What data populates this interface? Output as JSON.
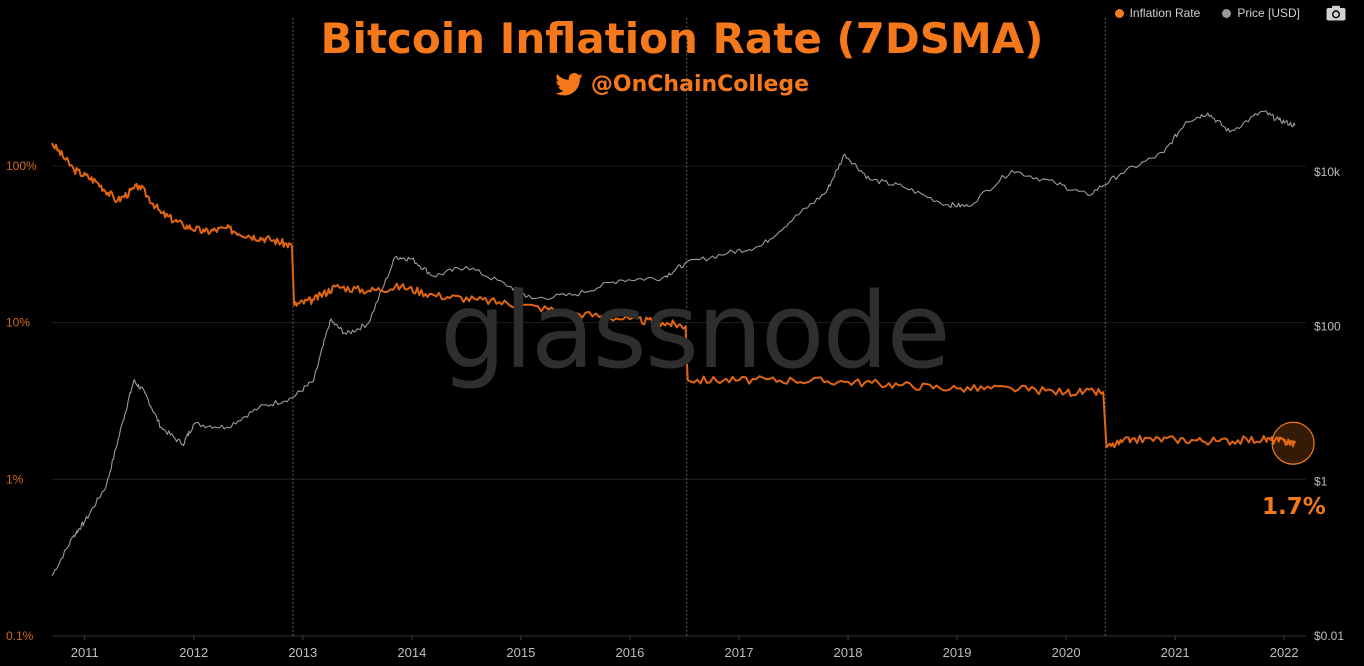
{
  "title": "Bitcoin Inflation Rate (7DSMA)",
  "handle": "@OnChainCollege",
  "watermark": "glassnode",
  "callout": "1.7%",
  "legend": [
    {
      "name": "Inflation Rate",
      "color": "#f07c1a"
    },
    {
      "name": "Price [USD]",
      "color": "#9a9a9a"
    }
  ],
  "colors": {
    "title": "#f5781b",
    "inflation": "#e06512",
    "price": "#9b9b9b",
    "background": "#000000",
    "axis_text_left": "#d46a1a",
    "axis_text_right": "#bdbdbd"
  },
  "icons": {
    "camera": "camera-icon",
    "twitter": "twitter-bird-icon"
  },
  "chart_data": {
    "type": "line",
    "title": "Bitcoin Inflation Rate (7DSMA)",
    "x_range": [
      2010.7,
      2022.2
    ],
    "xticks": [
      "2011",
      "2012",
      "2013",
      "2014",
      "2015",
      "2016",
      "2017",
      "2018",
      "2019",
      "2020",
      "2021",
      "2022"
    ],
    "left_axis": {
      "scale": "log",
      "range_percent": [
        0.1,
        300
      ],
      "ticks": [
        "100%",
        "10%",
        "1%",
        "0.1%"
      ]
    },
    "right_axis": {
      "scale": "log",
      "range_usd": [
        0.01,
        300000
      ],
      "ticks": [
        "$10k",
        "$100",
        "$1",
        "$0.01"
      ]
    },
    "halvings": [
      2012.91,
      2016.52,
      2020.36
    ],
    "series": [
      {
        "name": "Inflation Rate",
        "axis": "left",
        "unit": "percent",
        "points": [
          [
            2010.7,
            140
          ],
          [
            2010.9,
            95
          ],
          [
            2011.1,
            80
          ],
          [
            2011.3,
            60
          ],
          [
            2011.5,
            75
          ],
          [
            2011.7,
            50
          ],
          [
            2011.9,
            42
          ],
          [
            2012.1,
            38
          ],
          [
            2012.3,
            40
          ],
          [
            2012.5,
            36
          ],
          [
            2012.7,
            34
          ],
          [
            2012.9,
            31
          ],
          [
            2012.92,
            13
          ],
          [
            2013.1,
            14
          ],
          [
            2013.3,
            17
          ],
          [
            2013.6,
            16
          ],
          [
            2013.9,
            17
          ],
          [
            2014.2,
            15
          ],
          [
            2014.6,
            14
          ],
          [
            2015.0,
            13
          ],
          [
            2015.5,
            11.5
          ],
          [
            2016.0,
            10.5
          ],
          [
            2016.3,
            10
          ],
          [
            2016.51,
            9.5
          ],
          [
            2016.53,
            4.3
          ],
          [
            2017.0,
            4.3
          ],
          [
            2017.5,
            4.3
          ],
          [
            2018.0,
            4.2
          ],
          [
            2018.5,
            4.0
          ],
          [
            2019.0,
            3.8
          ],
          [
            2019.5,
            3.8
          ],
          [
            2020.0,
            3.6
          ],
          [
            2020.34,
            3.6
          ],
          [
            2020.37,
            1.6
          ],
          [
            2020.6,
            1.8
          ],
          [
            2021.0,
            1.8
          ],
          [
            2021.4,
            1.75
          ],
          [
            2021.8,
            1.8
          ],
          [
            2022.0,
            1.75
          ],
          [
            2022.1,
            1.7
          ]
        ]
      },
      {
        "name": "Price [USD]",
        "axis": "right",
        "unit": "USD",
        "points": [
          [
            2010.7,
            0.06
          ],
          [
            2010.9,
            0.2
          ],
          [
            2011.0,
            0.3
          ],
          [
            2011.2,
            0.9
          ],
          [
            2011.35,
            6
          ],
          [
            2011.45,
            20
          ],
          [
            2011.55,
            14
          ],
          [
            2011.7,
            5
          ],
          [
            2011.9,
            3
          ],
          [
            2012.0,
            5.5
          ],
          [
            2012.3,
            5
          ],
          [
            2012.6,
            9
          ],
          [
            2012.9,
            12
          ],
          [
            2013.1,
            20
          ],
          [
            2013.25,
            120
          ],
          [
            2013.4,
            80
          ],
          [
            2013.6,
            110
          ],
          [
            2013.85,
            800
          ],
          [
            2014.0,
            750
          ],
          [
            2014.2,
            450
          ],
          [
            2014.5,
            600
          ],
          [
            2014.9,
            330
          ],
          [
            2015.1,
            230
          ],
          [
            2015.5,
            260
          ],
          [
            2015.9,
            400
          ],
          [
            2016.3,
            430
          ],
          [
            2016.5,
            650
          ],
          [
            2016.9,
            900
          ],
          [
            2017.2,
            1100
          ],
          [
            2017.5,
            2500
          ],
          [
            2017.8,
            5500
          ],
          [
            2017.97,
            17000
          ],
          [
            2018.2,
            8000
          ],
          [
            2018.5,
            6500
          ],
          [
            2018.9,
            3800
          ],
          [
            2019.1,
            3600
          ],
          [
            2019.5,
            10500
          ],
          [
            2019.9,
            7200
          ],
          [
            2020.2,
            5000
          ],
          [
            2020.5,
            9500
          ],
          [
            2020.9,
            18000
          ],
          [
            2021.1,
            45000
          ],
          [
            2021.3,
            58000
          ],
          [
            2021.5,
            33000
          ],
          [
            2021.8,
            61000
          ],
          [
            2021.95,
            47000
          ],
          [
            2022.1,
            40000
          ]
        ]
      }
    ]
  }
}
